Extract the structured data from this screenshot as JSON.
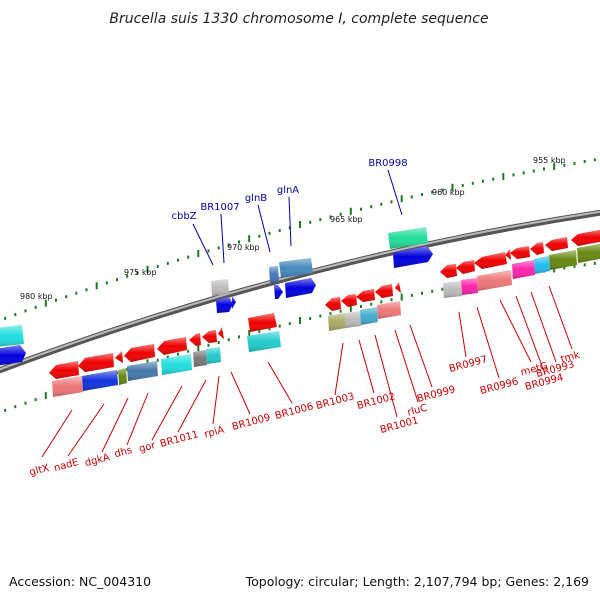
{
  "title": "Brucella suis 1330 chromosome I, complete sequence",
  "footer": {
    "accession": "Accession: NC_004310",
    "summary": "Topology: circular; Length: 2,107,794 bp; Genes: 2,169"
  },
  "colors": {
    "backbone": "#777777",
    "tick": "#1e7a1e",
    "label_reverse": "#cc0000",
    "label_forward": "#0000aa"
  },
  "ruler": [
    {
      "label": "980 kbp"
    },
    {
      "label": "975 kbp"
    },
    {
      "label": "970 kbp"
    },
    {
      "label": "965 kbp"
    },
    {
      "label": "960 kbp"
    },
    {
      "label": "955 kbp"
    }
  ],
  "labels_forward": [
    {
      "text": "cbbZ"
    },
    {
      "text": "BR1007"
    },
    {
      "text": "glnB"
    },
    {
      "text": "glnA"
    },
    {
      "text": "BR0998"
    }
  ],
  "labels_reverse": [
    {
      "text": "gltX"
    },
    {
      "text": "nadE"
    },
    {
      "text": "dgkA"
    },
    {
      "text": "dhs"
    },
    {
      "text": "gor"
    },
    {
      "text": "BR1011"
    },
    {
      "text": "rpiA"
    },
    {
      "text": "BR1009"
    },
    {
      "text": "BR1006"
    },
    {
      "text": "BR1003"
    },
    {
      "text": "BR1002"
    },
    {
      "text": "BR1001"
    },
    {
      "text": "rluC"
    },
    {
      "text": "BR0999"
    },
    {
      "text": "BR0997"
    },
    {
      "text": "BR0996"
    },
    {
      "text": "metG"
    },
    {
      "text": "BR0994"
    },
    {
      "text": "BR0993"
    },
    {
      "text": "tmk"
    }
  ]
}
